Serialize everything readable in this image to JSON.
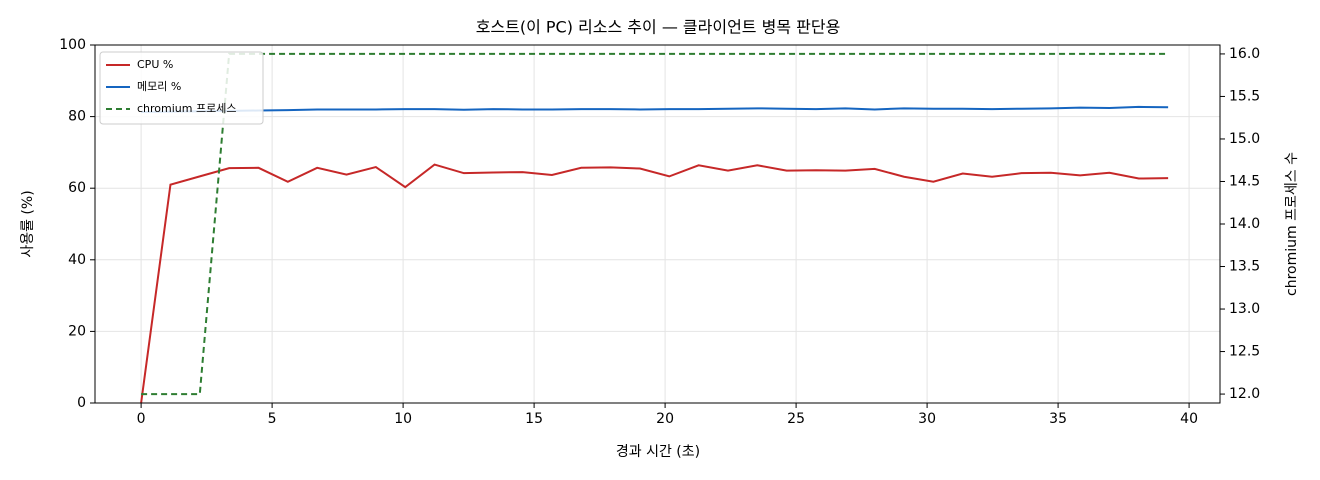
{
  "chart_data": {
    "type": "line",
    "title": "호스트(이 PC) 리소스 추이 — 클라이언트 병목 판단용",
    "x_label": "경과 시간 (초)",
    "y_label": "사용률 (%)",
    "y2_label": "chromium 프로세스 수",
    "x": [
      0,
      1.12,
      2.24,
      3.36,
      4.48,
      5.6,
      6.72,
      7.84,
      8.96,
      10.08,
      11.2,
      12.32,
      13.44,
      14.56,
      15.68,
      16.8,
      17.92,
      19.04,
      20.16,
      21.28,
      22.4,
      23.52,
      24.64,
      25.76,
      26.88,
      28,
      29.12,
      30.24,
      31.36,
      32.48,
      33.6,
      34.72,
      35.84,
      36.96,
      38.08,
      39.2
    ],
    "series": [
      {
        "name": "CPU %",
        "color": "#c62828",
        "dash": false,
        "values": [
          0,
          61,
          63.3,
          65.6,
          65.7,
          61.8,
          65.7,
          63.8,
          65.9,
          60.3,
          66.6,
          64.2,
          64.4,
          64.5,
          63.7,
          65.7,
          65.8,
          65.5,
          63.3,
          66.4,
          64.9,
          66.4,
          64.9,
          65.0,
          64.9,
          65.4,
          63.2,
          61.8,
          64.1,
          63.2,
          64.2,
          64.3,
          63.6,
          64.3,
          62.7,
          62.8
        ]
      },
      {
        "name": "메모리 %",
        "color": "#1565c0",
        "dash": false,
        "values": [
          81.3,
          81.4,
          81.5,
          81.6,
          81.7,
          81.8,
          82.0,
          82.0,
          82.0,
          82.1,
          82.1,
          81.9,
          82.1,
          82.0,
          82.0,
          82.1,
          82.1,
          82.0,
          82.1,
          82.1,
          82.2,
          82.3,
          82.2,
          82.1,
          82.3,
          82.0,
          82.3,
          82.2,
          82.2,
          82.1,
          82.2,
          82.3,
          82.5,
          82.4,
          82.7,
          82.6
        ]
      },
      {
        "name": "chromium 프로세스",
        "color": "#2e7d32",
        "dash": true,
        "axis": "y2",
        "values": [
          12,
          12,
          12,
          16,
          16,
          16,
          16,
          16,
          16,
          16,
          16,
          16,
          16,
          16,
          16,
          16,
          16,
          16,
          16,
          16,
          16,
          16,
          16,
          16,
          16,
          16,
          16,
          16,
          16,
          16,
          16,
          16,
          16,
          16,
          16,
          16
        ]
      }
    ],
    "xlim": [
      -1.76,
      41.18
    ],
    "xticks": [
      0,
      5,
      10,
      15,
      20,
      25,
      30,
      35,
      40
    ],
    "ylim": [
      0,
      100
    ],
    "yticks": [
      0,
      20,
      40,
      60,
      80,
      100
    ],
    "y2lim": [
      11.895,
      16.105
    ],
    "y2ticks": [
      {
        "value": 12,
        "label": "12.0"
      },
      12.5,
      {
        "value": 13,
        "label": "13.0"
      },
      13.5,
      {
        "value": 14,
        "label": "14.0"
      },
      14.5,
      {
        "value": 15,
        "label": "15.0"
      },
      15.5,
      {
        "value": 16,
        "label": "16.0"
      }
    ],
    "grid": true,
    "legend": "upper-left"
  }
}
